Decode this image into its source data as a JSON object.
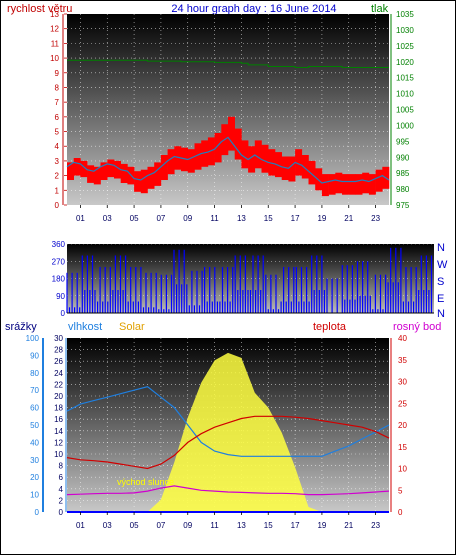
{
  "header": {
    "left_label": "rychlost větru",
    "title": "24 hour graph day : 16 June 2014",
    "right_label": "tlak"
  },
  "middle_labels": {
    "srazky": "srážky",
    "vlhkost": "vlhkost",
    "solar": "Solar",
    "teplota": "teplota",
    "rosny_bod": "rosný bod"
  },
  "annotation": "východ slunce",
  "compass": [
    "N",
    "W",
    "S",
    "E",
    "N"
  ],
  "x_ticks": [
    "01",
    "03",
    "05",
    "07",
    "09",
    "11",
    "13",
    "15",
    "17",
    "19",
    "21",
    "23"
  ],
  "colors": {
    "wind_gust": "#ff0000",
    "wind_avg": "#1f7fbf",
    "pressure": "#008000",
    "direction": "#0000ff",
    "humidity": "#1f7fdf",
    "solar": "#ffff40",
    "temperature": "#d00000",
    "dewpoint": "#d000d0",
    "rain": "#0000ff"
  },
  "chart_data": [
    {
      "type": "line",
      "name": "wind_pressure",
      "x": [
        0,
        0.5,
        1,
        1.5,
        2,
        2.5,
        3,
        3.5,
        4,
        4.5,
        5,
        5.5,
        6,
        6.5,
        7,
        7.5,
        8,
        8.5,
        9,
        9.5,
        10,
        10.5,
        11,
        11.5,
        12,
        12.5,
        13,
        13.5,
        14,
        14.5,
        15,
        15.5,
        16,
        16.5,
        17,
        17.5,
        18,
        18.5,
        19,
        19.5,
        20,
        20.5,
        21,
        21.5,
        22,
        22.5,
        23,
        23.5,
        24
      ],
      "series": [
        {
          "name": "rychlost větru",
          "axis": "left",
          "values": [
            2.6,
            2.9,
            2.8,
            2.4,
            2.3,
            2.6,
            2.8,
            2.7,
            2.4,
            2.3,
            1.8,
            1.7,
            2.0,
            2.2,
            2.6,
            3.0,
            3.3,
            3.2,
            3.1,
            3.3,
            3.5,
            3.6,
            3.8,
            4.3,
            4.6,
            4.0,
            3.4,
            3.1,
            3.4,
            3.1,
            2.9,
            2.8,
            2.6,
            2.5,
            2.9,
            2.7,
            2.3,
            1.9,
            1.5,
            1.6,
            1.7,
            1.6,
            1.6,
            1.6,
            1.7,
            1.6,
            1.8,
            2.0,
            1.7
          ]
        },
        {
          "name": "tlak",
          "axis": "right",
          "values": [
            1020.5,
            1020.5,
            1020.5,
            1020.5,
            1020.5,
            1020.5,
            1020.5,
            1020.5,
            1020.5,
            1020.5,
            1020.5,
            1020.5,
            1020.2,
            1020.2,
            1020.2,
            1020.2,
            1020.2,
            1020.0,
            1020.0,
            1020.0,
            1020.0,
            1020.0,
            1019.8,
            1019.8,
            1019.8,
            1019.8,
            1019.5,
            1019.0,
            1019.0,
            1019.0,
            1018.5,
            1018.5,
            1018.5,
            1018.5,
            1018.2,
            1018.2,
            1018.5,
            1018.5,
            1018.5,
            1018.5,
            1018.5,
            1018.2,
            1018.2,
            1018.2,
            1018.2,
            1018.2,
            1018.2,
            1018.2,
            1018.2
          ]
        }
      ],
      "gust_values": [
        2.9,
        3.2,
        3.0,
        2.7,
        2.6,
        2.9,
        3.1,
        3.0,
        2.8,
        2.6,
        2.3,
        2.4,
        2.6,
        2.9,
        3.4,
        3.8,
        4.0,
        3.9,
        3.8,
        4.2,
        4.4,
        4.6,
        4.9,
        5.5,
        6.0,
        5.2,
        4.4,
        4.0,
        4.4,
        4.1,
        3.8,
        3.6,
        3.3,
        3.3,
        3.8,
        3.4,
        3.0,
        2.5,
        2.1,
        2.1,
        2.2,
        2.1,
        2.1,
        2.1,
        2.2,
        2.1,
        2.4,
        2.6,
        2.3
      ],
      "ylim_left": [
        0,
        13
      ],
      "ylim_right": [
        975,
        1035
      ],
      "y_ticks_left": [
        0,
        1,
        2,
        3,
        4,
        5,
        6,
        7,
        8,
        9,
        10,
        11,
        12,
        13
      ],
      "y_ticks_right": [
        975,
        980,
        985,
        990,
        995,
        1000,
        1005,
        1010,
        1015,
        1020,
        1025,
        1030,
        1035
      ],
      "grid": true
    },
    {
      "type": "line",
      "name": "wind_direction",
      "x": [
        0,
        1,
        2,
        3,
        4,
        5,
        6,
        7,
        8,
        9,
        10,
        11,
        12,
        13,
        14,
        15,
        16,
        17,
        18,
        19,
        20,
        21,
        22,
        23,
        24
      ],
      "values": [
        210,
        300,
        60,
        120,
        60,
        30,
        20,
        330,
        40,
        240,
        60,
        300,
        120,
        200,
        60,
        240,
        300,
        180,
        250,
        270,
        20,
        160,
        60,
        120,
        300
      ],
      "ylim": [
        0,
        360
      ],
      "y_ticks": [
        0,
        90,
        180,
        270,
        360
      ]
    },
    {
      "type": "line",
      "name": "humidity_solar_temperature",
      "x": [
        0,
        1,
        2,
        3,
        4,
        5,
        6,
        7,
        8,
        9,
        10,
        11,
        12,
        13,
        14,
        15,
        16,
        17,
        18,
        19,
        20,
        21,
        22,
        23,
        24
      ],
      "series": [
        {
          "name": "vlhkost",
          "axis": "left_humidity",
          "values": [
            58,
            62,
            64,
            66,
            68,
            70,
            72,
            66,
            60,
            50,
            40,
            35,
            33,
            32,
            32,
            32,
            32,
            32,
            32,
            32,
            35,
            38,
            42,
            46,
            50
          ]
        },
        {
          "name": "teplota",
          "axis": "right_temperature",
          "values": [
            12.5,
            12,
            11.8,
            11.5,
            11,
            10.5,
            10,
            11,
            13,
            16,
            18,
            19.5,
            20.5,
            21.5,
            22,
            22,
            22,
            21.8,
            21.5,
            21,
            20.5,
            20,
            19.5,
            18.5,
            17
          ]
        },
        {
          "name": "rosný bod",
          "axis": "right_temperature",
          "values": [
            4,
            4.1,
            4.2,
            4.3,
            4.3,
            4.4,
            4.8,
            5.5,
            6,
            5.5,
            5,
            4.8,
            4.6,
            4.5,
            4.4,
            4.3,
            4.3,
            4.2,
            4.0,
            4.0,
            4.1,
            4.2,
            4.4,
            4.6,
            4.8
          ]
        },
        {
          "name": "Solar",
          "axis": "right_solar",
          "values": [
            0,
            0,
            0,
            0,
            0,
            0,
            0,
            50,
            200,
            380,
            520,
            610,
            640,
            620,
            480,
            420,
            320,
            180,
            20,
            0,
            0,
            0,
            0,
            0,
            0
          ]
        },
        {
          "name": "srážky",
          "axis": "left_rain",
          "values": [
            0,
            0,
            0,
            0,
            0,
            0,
            0,
            0,
            0,
            0,
            0,
            0,
            0,
            0,
            0,
            0,
            0,
            0,
            0,
            0,
            0,
            0,
            0,
            0,
            0
          ]
        }
      ],
      "ylim_rain": [
        0,
        100
      ],
      "ylim_humidity": [
        0,
        100
      ],
      "ylim_right": [
        0,
        40
      ],
      "y_ticks_rain": [
        0,
        10,
        20,
        30,
        40,
        50,
        60,
        70,
        80,
        90,
        100
      ],
      "y_ticks_left": [
        0,
        2,
        4,
        6,
        8,
        10,
        12,
        14,
        16,
        18,
        20,
        22,
        24,
        26,
        28,
        30
      ],
      "y_ticks_right": [
        0,
        5,
        10,
        15,
        20,
        25,
        30,
        35,
        40
      ],
      "grid": true
    }
  ]
}
